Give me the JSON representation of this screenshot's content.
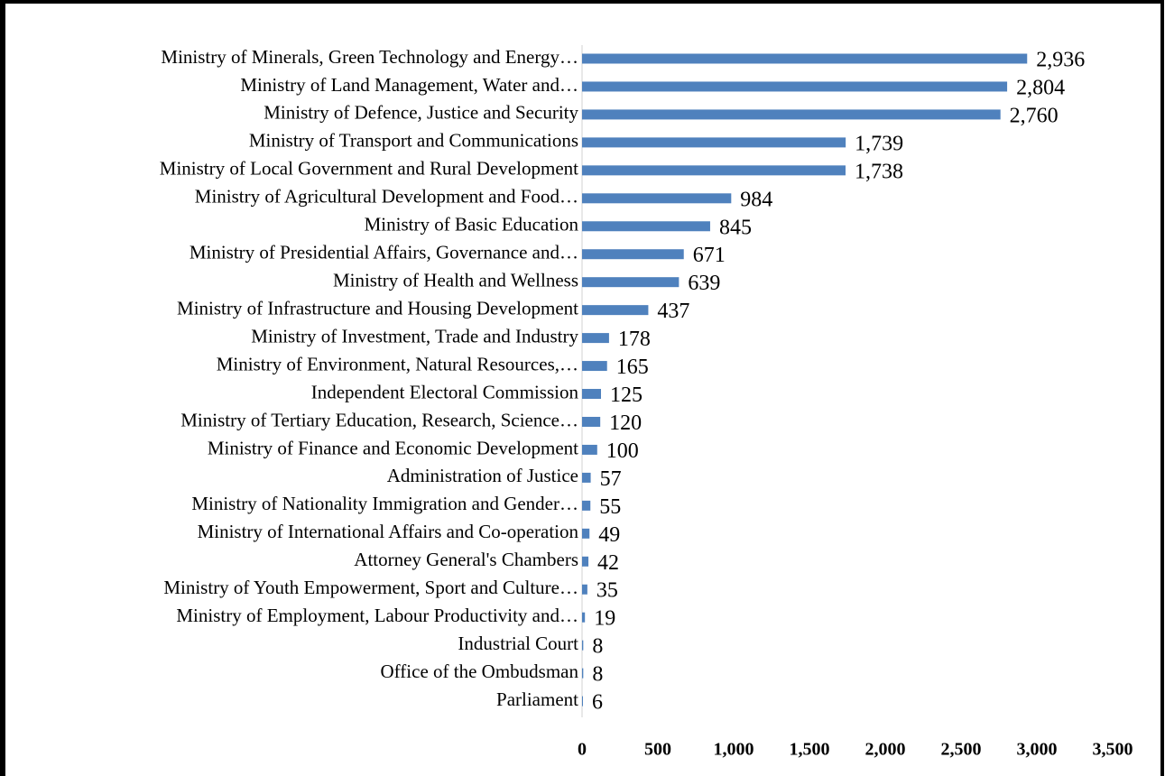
{
  "chart_data": {
    "type": "hbar",
    "color": "#4f81bd",
    "categories": [
      "Ministry of Minerals, Green Technology and Energy…",
      "Ministry of Land Management, Water and…",
      "Ministry of Defence, Justice and Security",
      "Ministry of Transport and Communications",
      "Ministry of Local Government and Rural Development",
      "Ministry of Agricultural Development and Food…",
      "Ministry of Basic Education",
      "Ministry of Presidential Affairs, Governance and…",
      "Ministry of Health and Wellness",
      "Ministry of Infrastructure and Housing Development",
      "Ministry of Investment, Trade and Industry",
      "Ministry of Environment, Natural Resources,…",
      "Independent Electoral Commission",
      "Ministry of Tertiary Education, Research, Science…",
      "Ministry of Finance and Economic Development",
      "Administration of Justice",
      "Ministry of Nationality Immigration and Gender…",
      "Ministry of International Affairs and Co-operation",
      "Attorney General's Chambers",
      "Ministry of Youth Empowerment, Sport and Culture…",
      "Ministry of Employment, Labour Productivity and…",
      "Industrial Court",
      "Office of the Ombudsman",
      "Parliament"
    ],
    "values": [
      2936,
      2804,
      2760,
      1739,
      1738,
      984,
      845,
      671,
      639,
      437,
      178,
      165,
      125,
      120,
      100,
      57,
      55,
      49,
      42,
      35,
      19,
      8,
      8,
      6
    ],
    "value_labels": [
      "2,936",
      "2,804",
      "2,760",
      "1,739",
      "1,738",
      "984",
      "845",
      "671",
      "639",
      "437",
      "178",
      "165",
      "125",
      "120",
      "100",
      "57",
      "55",
      "49",
      "42",
      "35",
      "19",
      "8",
      "8",
      "6"
    ],
    "xlim": [
      0,
      3500
    ],
    "xticks": [
      0,
      500,
      {
        "value": 1000,
        "label": "1,000"
      },
      {
        "value": 1500,
        "label": "1,500"
      },
      {
        "value": 2000,
        "label": "2,000"
      },
      {
        "value": 2500,
        "label": "2,500"
      },
      {
        "value": 3000,
        "label": "3,000"
      },
      {
        "value": 3500,
        "label": "3,500"
      }
    ]
  }
}
